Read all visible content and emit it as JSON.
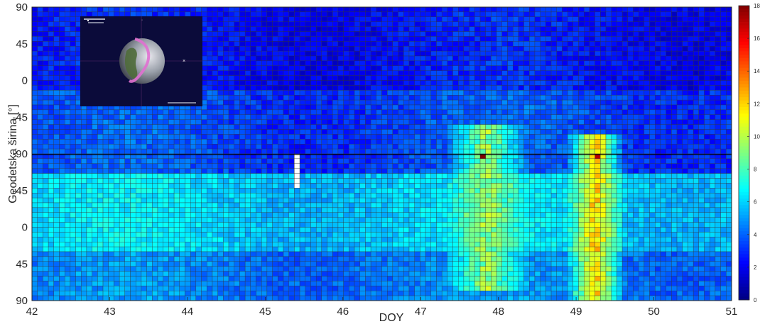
{
  "chart_data": {
    "type": "heatmap",
    "title": "",
    "xlabel": "DOY",
    "ylabel": "Geodetska širina [°]",
    "x_ticks": [
      "42",
      "43",
      "44",
      "45",
      "46",
      "47",
      "48",
      "49",
      "50",
      "51"
    ],
    "y_ticks": [
      "90",
      "45",
      "0",
      "-45",
      "-90",
      "-45",
      "0",
      "45",
      "90"
    ],
    "xlim": [
      42,
      51
    ],
    "colorbar": {
      "ticks": [
        "0",
        "2",
        "4",
        "6",
        "8",
        "10",
        "12",
        "14",
        "16",
        "18"
      ],
      "range": [
        0,
        18
      ],
      "colormap": "jet"
    },
    "grid_cols": 128,
    "grid_rows": 60,
    "background_value": 4,
    "features": [
      {
        "name": "northern-pole-band",
        "y_rows": [
          0,
          17
        ],
        "value": 2.5
      },
      {
        "name": "equatorial-band",
        "y_rows": [
          17,
          34
        ],
        "value": 3.5
      },
      {
        "name": "south-mid-band",
        "y_rows": [
          34,
          50
        ],
        "value": 6
      },
      {
        "name": "southern-pole-band",
        "y_rows": [
          50,
          60
        ],
        "value": 4.5
      },
      {
        "name": "storm-doy-47.8",
        "x_range": [
          47.5,
          48.2
        ],
        "y_rows": [
          24,
          58
        ],
        "value": 9.5
      },
      {
        "name": "storm-doy-49.2",
        "x_range": [
          49.0,
          49.5
        ],
        "y_rows": [
          26,
          60
        ],
        "value": 12
      },
      {
        "name": "spike-48",
        "x": 47.8,
        "row": 30,
        "value": 18
      },
      {
        "name": "spike-49.3",
        "x": 49.3,
        "row": 30,
        "value": 17
      },
      {
        "name": "gap-45.4",
        "x": 45.4,
        "y_rows": [
          30,
          37
        ],
        "value": null
      }
    ],
    "grid": true
  },
  "inset": {
    "title_text": "",
    "description": "globe orbit inset"
  },
  "colors": {
    "grid_line": "#333333",
    "inset_bg": "#0b0b3a",
    "orbit_magenta": "#e070d0"
  }
}
